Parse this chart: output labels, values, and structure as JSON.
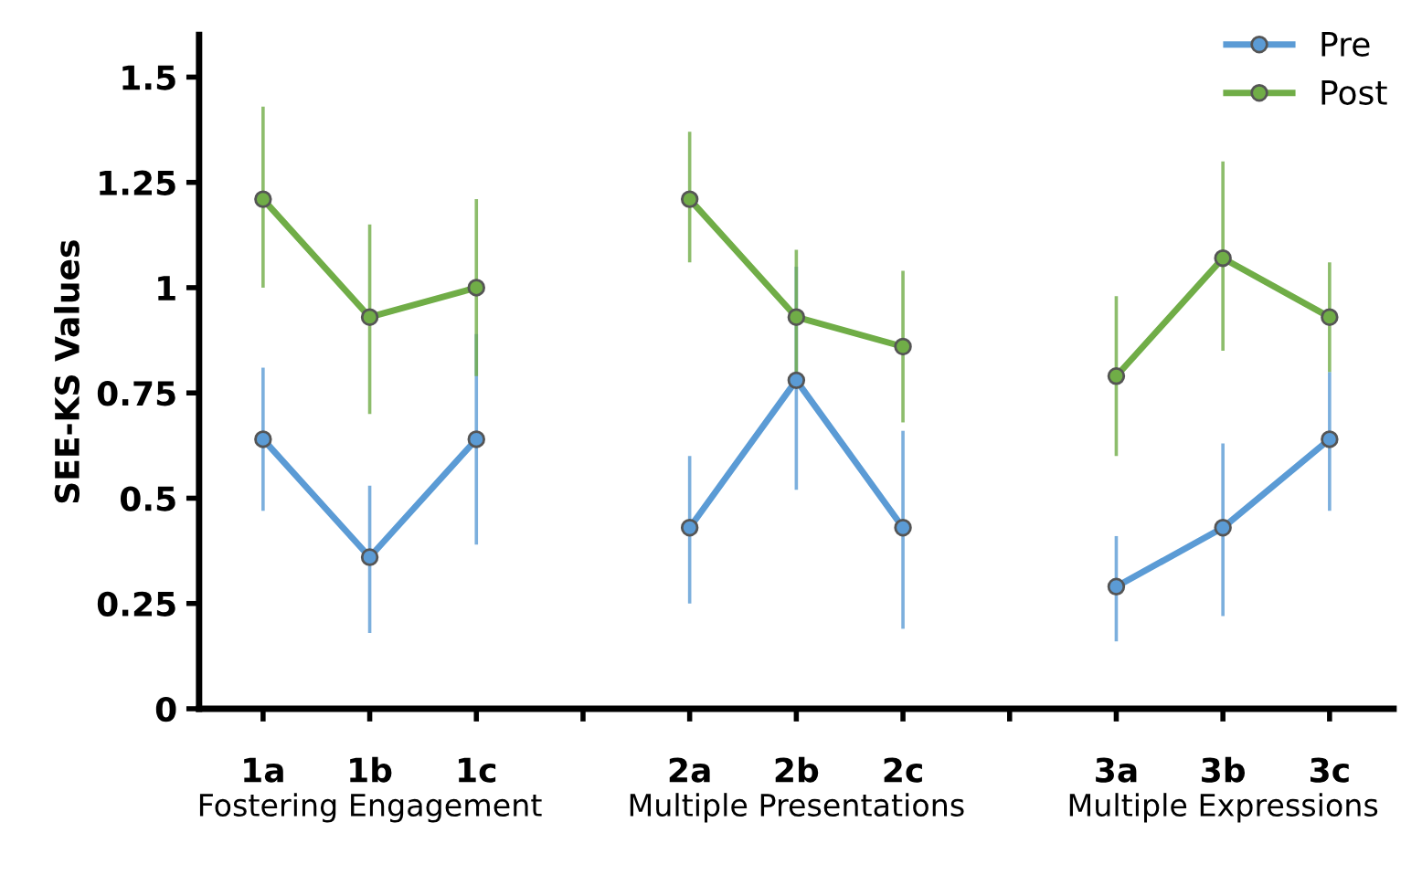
{
  "chart_data": {
    "type": "line",
    "ylabel": "SEE-KS Values",
    "categories": [
      "1a",
      "1b",
      "1c",
      null,
      "2a",
      "2b",
      "2c",
      null,
      "3a",
      "3b",
      "3c"
    ],
    "series": [
      {
        "name": "Pre",
        "color": "#5b9bd5",
        "values": [
          0.64,
          0.36,
          0.64,
          null,
          0.43,
          0.78,
          0.43,
          null,
          0.29,
          0.43,
          0.64
        ],
        "errors": [
          [
            0.47,
            0.81
          ],
          [
            0.18,
            0.53
          ],
          [
            0.39,
            0.89
          ],
          null,
          [
            0.25,
            0.6
          ],
          [
            0.52,
            1.05
          ],
          [
            0.19,
            0.66
          ],
          null,
          [
            0.16,
            0.41
          ],
          [
            0.22,
            0.63
          ],
          [
            0.47,
            0.8
          ]
        ]
      },
      {
        "name": "Post",
        "color": "#70ad47",
        "values": [
          1.21,
          0.93,
          1.0,
          null,
          1.21,
          0.93,
          0.86,
          null,
          0.79,
          1.07,
          0.93
        ],
        "errors": [
          [
            1.0,
            1.43
          ],
          [
            0.7,
            1.15
          ],
          [
            0.79,
            1.21
          ],
          null,
          [
            1.06,
            1.37
          ],
          [
            0.78,
            1.09
          ],
          [
            0.68,
            1.04
          ],
          null,
          [
            0.6,
            0.98
          ],
          [
            0.85,
            1.3
          ],
          [
            0.8,
            1.06
          ]
        ]
      }
    ],
    "ylim": [
      0,
      1.6
    ],
    "yticks": [
      0,
      0.25,
      0.5,
      0.75,
      1,
      1.25,
      1.5
    ],
    "annotations": [
      "Fostering Engagement",
      "Multiple Presentations",
      "Multiple Expressions"
    ],
    "legend": "top right",
    "marker": "circle",
    "line_style": "solid",
    "grid": false
  }
}
